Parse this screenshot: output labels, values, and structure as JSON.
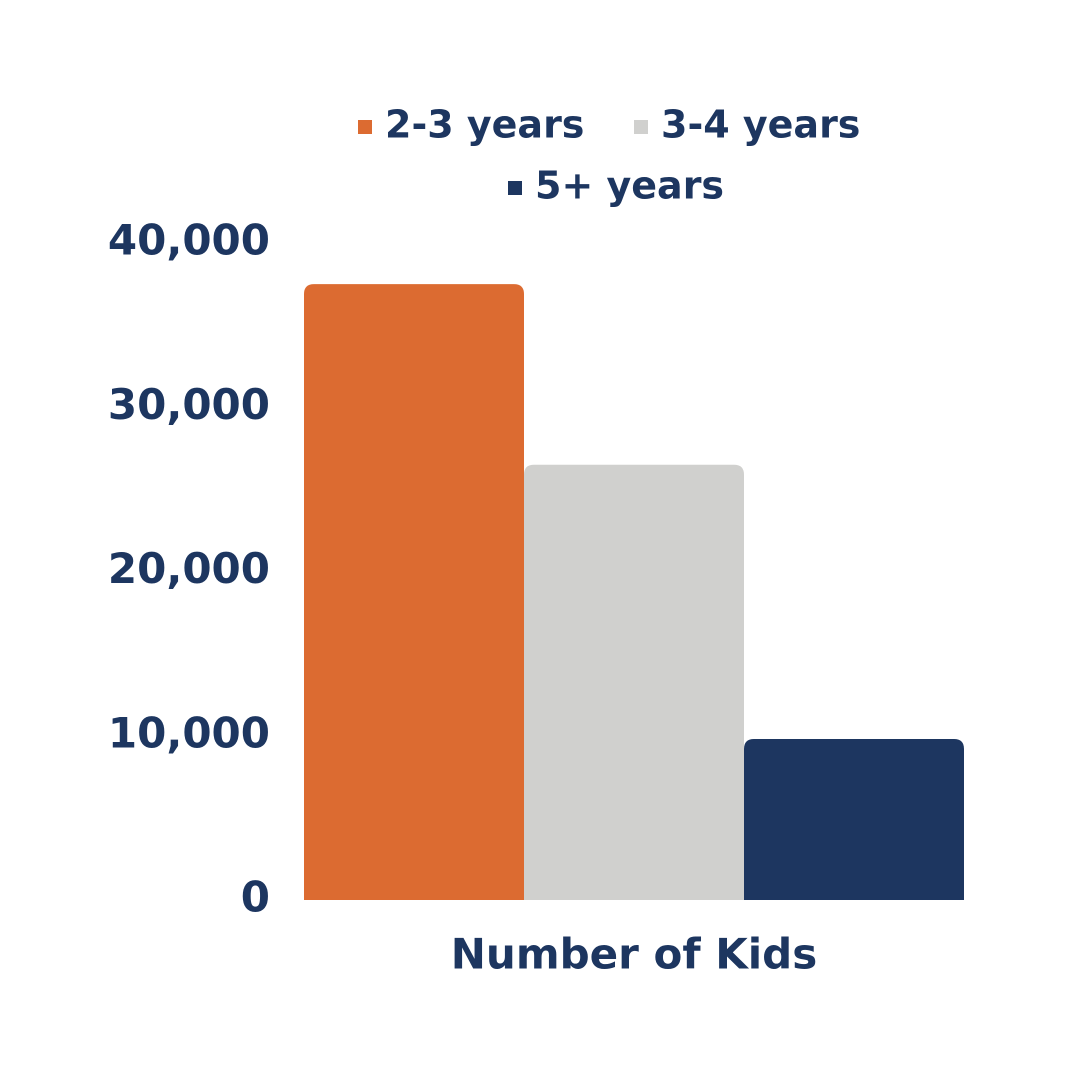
{
  "chart_data": {
    "type": "bar",
    "categories": [
      "Number of Kids"
    ],
    "series": [
      {
        "name": "2-3 years",
        "color": "#dc6b31",
        "values": [
          37500
        ]
      },
      {
        "name": "3-4 years",
        "color": "#d0d0ce",
        "values": [
          26500
        ]
      },
      {
        "name": "5+ years",
        "color": "#1d3660",
        "values": [
          9800
        ]
      }
    ],
    "ylim": [
      0,
      40000
    ],
    "yticks": [
      0,
      {
        "value": 10000,
        "label": "10,000"
      },
      {
        "value": 20000,
        "label": "20,000"
      },
      {
        "value": 30000,
        "label": "30,000"
      },
      {
        "value": 40000,
        "label": "40,000"
      }
    ],
    "grid": false,
    "legend": "top"
  }
}
